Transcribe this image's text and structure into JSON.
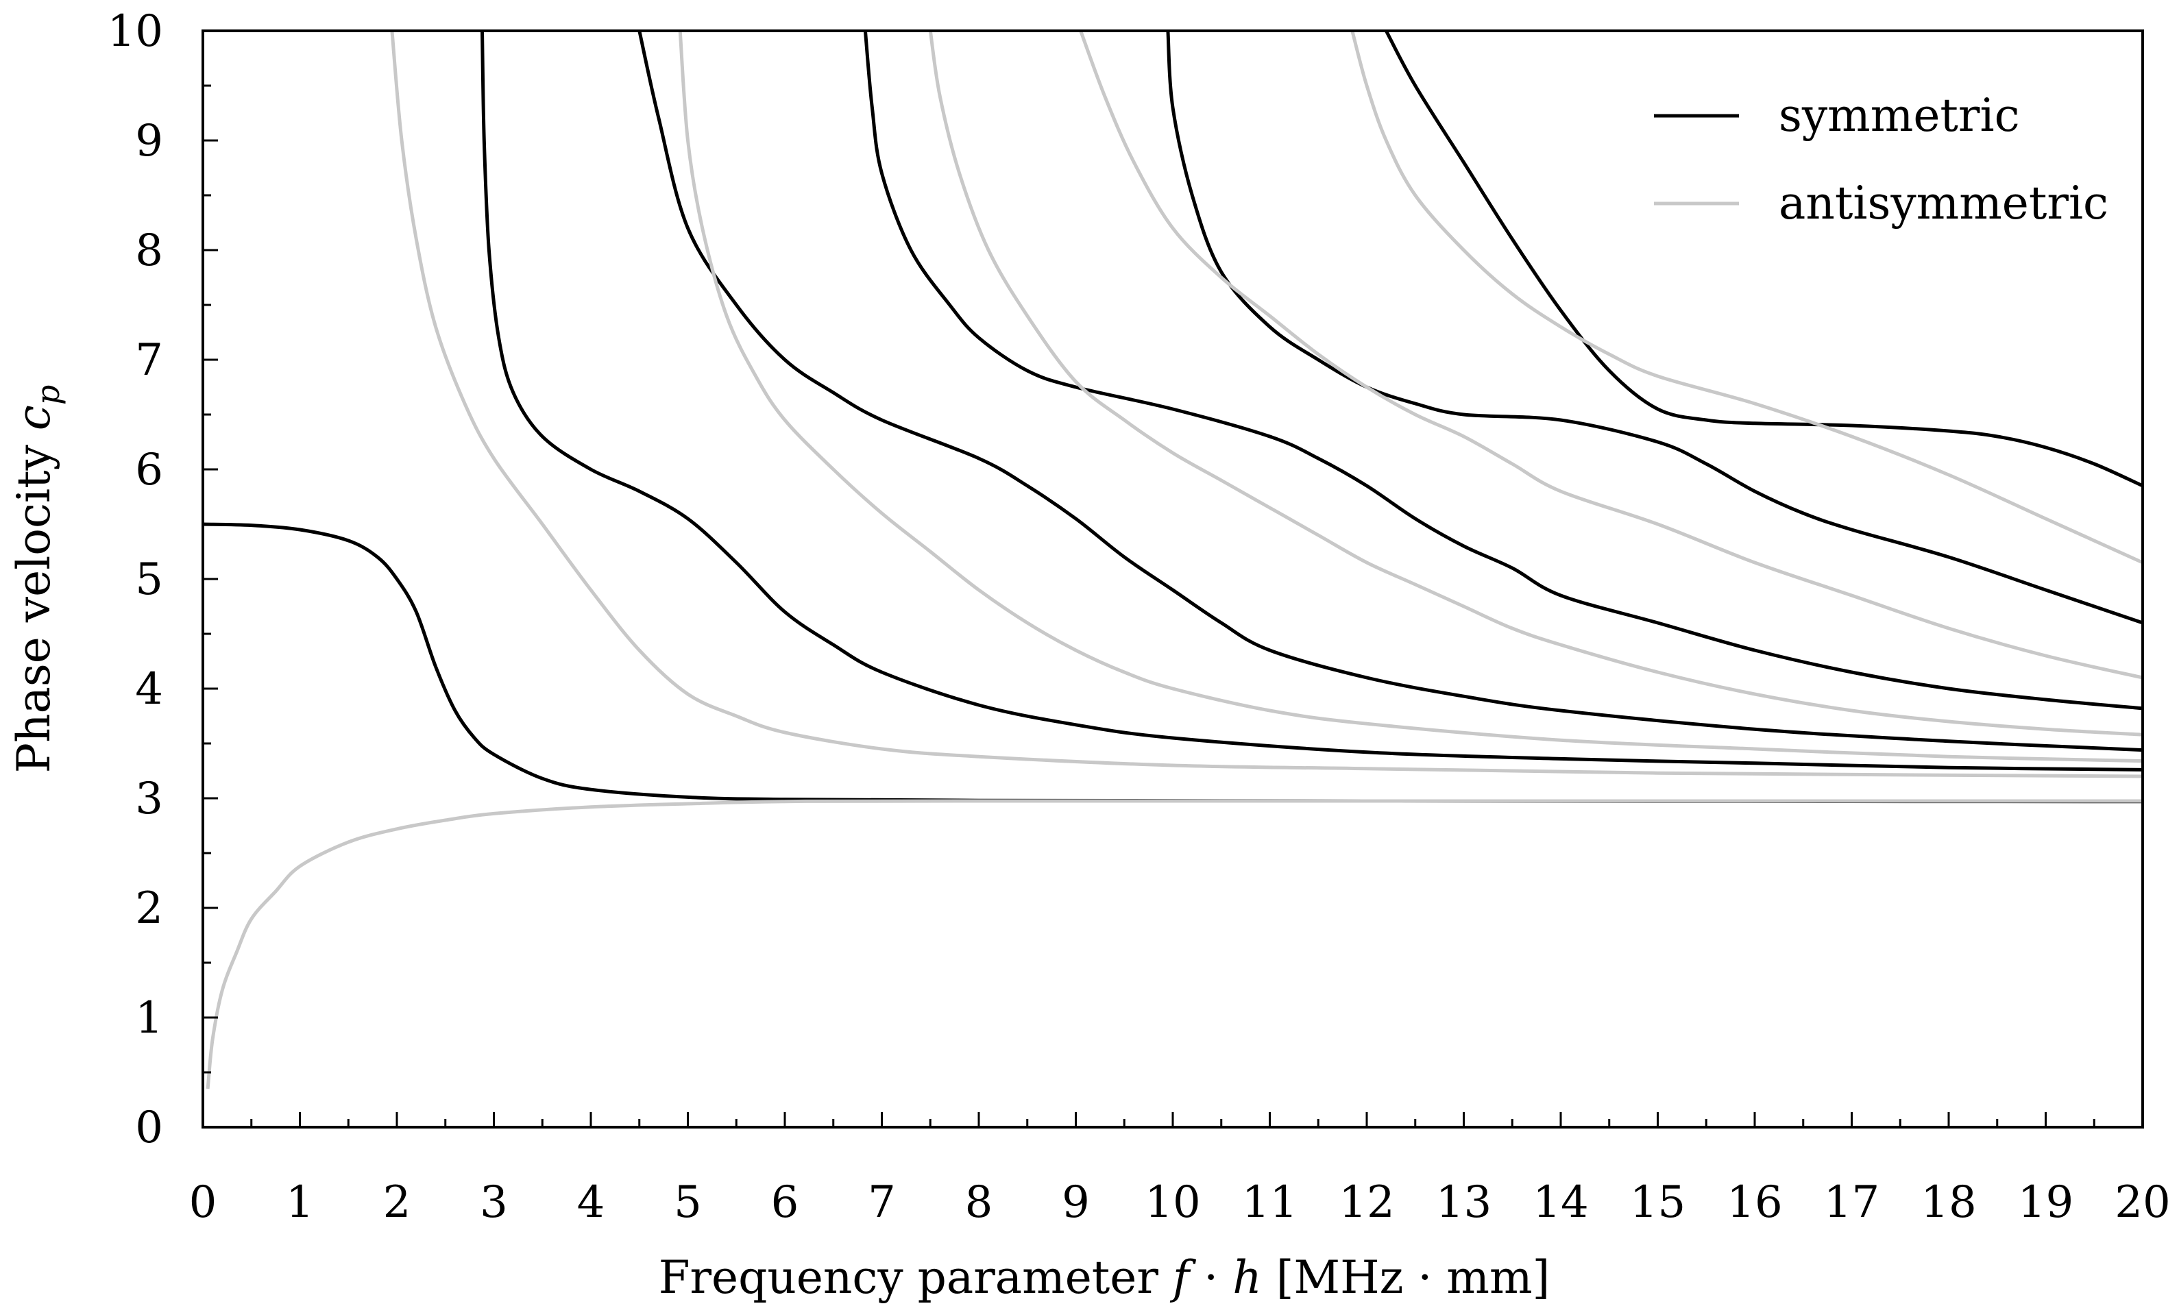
{
  "chart_data": {
    "type": "line",
    "xlabel": {
      "prefix": "Frequency parameter ",
      "var1": "f",
      "dot": " · ",
      "var2": "h",
      "unit": " [MHz · mm]"
    },
    "ylabel": {
      "prefix": "Phase velocity ",
      "var": "c",
      "sub": "p"
    },
    "xlim": [
      0,
      20
    ],
    "ylim": [
      0,
      10
    ],
    "xticks": [
      0,
      1,
      2,
      3,
      4,
      5,
      6,
      7,
      8,
      9,
      10,
      11,
      12,
      13,
      14,
      15,
      16,
      17,
      18,
      19,
      20
    ],
    "yticks": [
      0,
      1,
      2,
      3,
      4,
      5,
      6,
      7,
      8,
      9,
      10
    ],
    "grid": false,
    "legend_position": "top-right",
    "legend": [
      {
        "label": "symmetric",
        "color": "#000000"
      },
      {
        "label": "antisymmetric",
        "color": "#c8c8c8"
      }
    ],
    "series": [
      {
        "group": "symmetric",
        "color": "#000000",
        "points": [
          [
            0,
            5.5
          ],
          [
            0.5,
            5.49
          ],
          [
            1,
            5.45
          ],
          [
            1.5,
            5.35
          ],
          [
            1.8,
            5.2
          ],
          [
            2,
            5.0
          ],
          [
            2.2,
            4.7
          ],
          [
            2.4,
            4.2
          ],
          [
            2.6,
            3.8
          ],
          [
            2.8,
            3.55
          ],
          [
            3,
            3.4
          ],
          [
            3.5,
            3.18
          ],
          [
            4,
            3.08
          ],
          [
            5,
            3.01
          ],
          [
            6,
            2.99
          ],
          [
            8,
            2.98
          ],
          [
            12,
            2.975
          ],
          [
            20,
            2.97
          ]
        ]
      },
      {
        "group": "symmetric",
        "color": "#000000",
        "points": [
          [
            2.88,
            10
          ],
          [
            2.9,
            9.0
          ],
          [
            2.95,
            8.0
          ],
          [
            3.05,
            7.2
          ],
          [
            3.2,
            6.7
          ],
          [
            3.5,
            6.3
          ],
          [
            4,
            6.0
          ],
          [
            4.5,
            5.8
          ],
          [
            5,
            5.55
          ],
          [
            5.5,
            5.15
          ],
          [
            6,
            4.7
          ],
          [
            6.5,
            4.4
          ],
          [
            7,
            4.15
          ],
          [
            8,
            3.85
          ],
          [
            9,
            3.67
          ],
          [
            10,
            3.55
          ],
          [
            12,
            3.42
          ],
          [
            14,
            3.36
          ],
          [
            16,
            3.32
          ],
          [
            18,
            3.28
          ],
          [
            20,
            3.26
          ]
        ]
      },
      {
        "group": "symmetric",
        "color": "#000000",
        "points": [
          [
            4.5,
            10
          ],
          [
            4.7,
            9.2
          ],
          [
            5,
            8.2
          ],
          [
            5.5,
            7.5
          ],
          [
            6,
            7.0
          ],
          [
            6.5,
            6.7
          ],
          [
            7,
            6.45
          ],
          [
            8,
            6.1
          ],
          [
            8.5,
            5.85
          ],
          [
            9,
            5.55
          ],
          [
            9.5,
            5.2
          ],
          [
            10,
            4.9
          ],
          [
            10.5,
            4.6
          ],
          [
            11,
            4.35
          ],
          [
            12,
            4.1
          ],
          [
            13,
            3.93
          ],
          [
            14,
            3.8
          ],
          [
            16,
            3.63
          ],
          [
            18,
            3.52
          ],
          [
            20,
            3.44
          ]
        ]
      },
      {
        "group": "symmetric",
        "color": "#000000",
        "points": [
          [
            6.83,
            10
          ],
          [
            6.9,
            9.3
          ],
          [
            7,
            8.7
          ],
          [
            7.3,
            8.0
          ],
          [
            7.7,
            7.5
          ],
          [
            8,
            7.2
          ],
          [
            8.5,
            6.9
          ],
          [
            9,
            6.75
          ],
          [
            10,
            6.55
          ],
          [
            11,
            6.3
          ],
          [
            11.5,
            6.1
          ],
          [
            12,
            5.85
          ],
          [
            12.5,
            5.55
          ],
          [
            13,
            5.3
          ],
          [
            13.5,
            5.1
          ],
          [
            14,
            4.85
          ],
          [
            15,
            4.6
          ],
          [
            16,
            4.35
          ],
          [
            17,
            4.15
          ],
          [
            18,
            4.0
          ],
          [
            19,
            3.9
          ],
          [
            20,
            3.82
          ]
        ]
      },
      {
        "group": "symmetric",
        "color": "#000000",
        "points": [
          [
            9.95,
            10
          ],
          [
            10,
            9.3
          ],
          [
            10.2,
            8.5
          ],
          [
            10.5,
            7.8
          ],
          [
            11,
            7.3
          ],
          [
            11.5,
            7.0
          ],
          [
            12,
            6.75
          ],
          [
            12.5,
            6.6
          ],
          [
            13,
            6.5
          ],
          [
            14,
            6.45
          ],
          [
            15,
            6.25
          ],
          [
            15.5,
            6.05
          ],
          [
            16,
            5.8
          ],
          [
            16.5,
            5.6
          ],
          [
            17,
            5.45
          ],
          [
            18,
            5.2
          ],
          [
            19,
            4.9
          ],
          [
            20,
            4.6
          ]
        ]
      },
      {
        "group": "symmetric",
        "color": "#000000",
        "points": [
          [
            12.2,
            10
          ],
          [
            12.5,
            9.5
          ],
          [
            13,
            8.8
          ],
          [
            13.5,
            8.1
          ],
          [
            14,
            7.45
          ],
          [
            14.5,
            6.9
          ],
          [
            15,
            6.55
          ],
          [
            15.5,
            6.45
          ],
          [
            16,
            6.42
          ],
          [
            17,
            6.4
          ],
          [
            18,
            6.35
          ],
          [
            18.5,
            6.3
          ],
          [
            19,
            6.2
          ],
          [
            19.5,
            6.05
          ],
          [
            20,
            5.85
          ]
        ]
      },
      {
        "group": "antisymmetric",
        "color": "#c8c8c8",
        "points": [
          [
            0.05,
            0.35
          ],
          [
            0.1,
            0.8
          ],
          [
            0.2,
            1.25
          ],
          [
            0.35,
            1.6
          ],
          [
            0.5,
            1.9
          ],
          [
            0.75,
            2.15
          ],
          [
            1,
            2.38
          ],
          [
            1.5,
            2.6
          ],
          [
            2,
            2.72
          ],
          [
            2.5,
            2.8
          ],
          [
            3,
            2.86
          ],
          [
            4,
            2.92
          ],
          [
            5,
            2.95
          ],
          [
            6,
            2.97
          ],
          [
            8,
            2.975
          ],
          [
            20,
            2.975
          ]
        ]
      },
      {
        "group": "antisymmetric",
        "color": "#c8c8c8",
        "points": [
          [
            1.95,
            10
          ],
          [
            2.05,
            9.0
          ],
          [
            2.2,
            8.1
          ],
          [
            2.4,
            7.3
          ],
          [
            2.7,
            6.6
          ],
          [
            3,
            6.1
          ],
          [
            3.5,
            5.5
          ],
          [
            4,
            4.9
          ],
          [
            4.5,
            4.35
          ],
          [
            5,
            3.95
          ],
          [
            5.5,
            3.75
          ],
          [
            6,
            3.6
          ],
          [
            7,
            3.45
          ],
          [
            8,
            3.38
          ],
          [
            10,
            3.3
          ],
          [
            12,
            3.27
          ],
          [
            15,
            3.23
          ],
          [
            20,
            3.2
          ]
        ]
      },
      {
        "group": "antisymmetric",
        "color": "#c8c8c8",
        "points": [
          [
            4.92,
            10
          ],
          [
            5.0,
            9.0
          ],
          [
            5.15,
            8.2
          ],
          [
            5.4,
            7.4
          ],
          [
            5.7,
            6.85
          ],
          [
            6,
            6.45
          ],
          [
            6.5,
            6.0
          ],
          [
            7,
            5.6
          ],
          [
            7.5,
            5.25
          ],
          [
            8,
            4.9
          ],
          [
            8.5,
            4.6
          ],
          [
            9,
            4.35
          ],
          [
            9.5,
            4.15
          ],
          [
            10,
            4.0
          ],
          [
            11,
            3.8
          ],
          [
            12,
            3.68
          ],
          [
            14,
            3.53
          ],
          [
            16,
            3.45
          ],
          [
            18,
            3.38
          ],
          [
            20,
            3.34
          ]
        ]
      },
      {
        "group": "antisymmetric",
        "color": "#c8c8c8",
        "points": [
          [
            7.5,
            10
          ],
          [
            7.6,
            9.4
          ],
          [
            7.8,
            8.7
          ],
          [
            8.1,
            8.0
          ],
          [
            8.5,
            7.4
          ],
          [
            9,
            6.8
          ],
          [
            9.5,
            6.45
          ],
          [
            10,
            6.15
          ],
          [
            10.5,
            5.9
          ],
          [
            11,
            5.65
          ],
          [
            11.5,
            5.4
          ],
          [
            12,
            5.15
          ],
          [
            12.5,
            4.95
          ],
          [
            13,
            4.75
          ],
          [
            13.5,
            4.55
          ],
          [
            14,
            4.4
          ],
          [
            15,
            4.15
          ],
          [
            16,
            3.95
          ],
          [
            17,
            3.8
          ],
          [
            18,
            3.7
          ],
          [
            19,
            3.63
          ],
          [
            20,
            3.58
          ]
        ]
      },
      {
        "group": "antisymmetric",
        "color": "#c8c8c8",
        "points": [
          [
            9.05,
            10
          ],
          [
            9.3,
            9.4
          ],
          [
            9.6,
            8.8
          ],
          [
            10,
            8.2
          ],
          [
            10.5,
            7.75
          ],
          [
            11,
            7.4
          ],
          [
            11.5,
            7.05
          ],
          [
            12,
            6.75
          ],
          [
            12.5,
            6.5
          ],
          [
            13,
            6.3
          ],
          [
            13.5,
            6.05
          ],
          [
            14,
            5.8
          ],
          [
            15,
            5.5
          ],
          [
            16,
            5.15
          ],
          [
            17,
            4.85
          ],
          [
            18,
            4.55
          ],
          [
            19,
            4.3
          ],
          [
            20,
            4.1
          ]
        ]
      },
      {
        "group": "antisymmetric",
        "color": "#c8c8c8",
        "points": [
          [
            11.85,
            10
          ],
          [
            12,
            9.5
          ],
          [
            12.2,
            9.0
          ],
          [
            12.5,
            8.5
          ],
          [
            13,
            8.0
          ],
          [
            13.5,
            7.6
          ],
          [
            14,
            7.3
          ],
          [
            14.5,
            7.05
          ],
          [
            15,
            6.85
          ],
          [
            16,
            6.6
          ],
          [
            17,
            6.3
          ],
          [
            18,
            5.95
          ],
          [
            19,
            5.55
          ],
          [
            20,
            5.15
          ]
        ]
      }
    ]
  }
}
